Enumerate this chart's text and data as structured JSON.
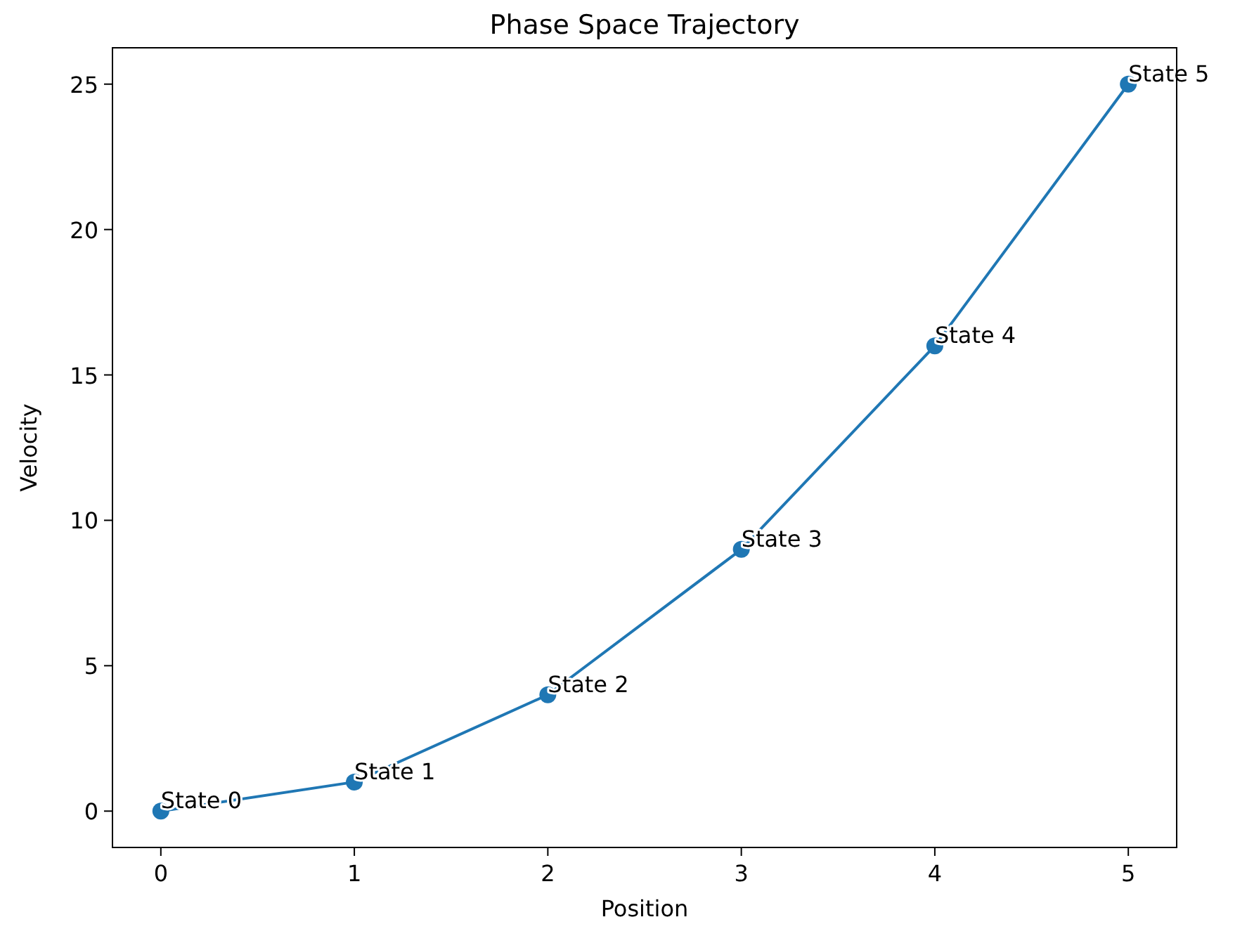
{
  "chart_data": {
    "type": "line",
    "title": "Phase Space Trajectory",
    "xlabel": "Position",
    "ylabel": "Velocity",
    "x": [
      0,
      1,
      2,
      3,
      4,
      5
    ],
    "series": [
      {
        "color": "#1f77b4",
        "values": [
          0,
          1,
          4,
          9,
          16,
          25
        ]
      }
    ],
    "marker": "circle",
    "line_style": "solid",
    "grid": false,
    "xlim": [
      -0.25,
      5.25
    ],
    "xticks": [
      0,
      1,
      2,
      3,
      4,
      5
    ],
    "ylim": [
      -1.25,
      26.25
    ],
    "yticks": [
      0,
      5,
      10,
      15,
      20,
      25
    ],
    "annotations": [
      {
        "text": "State 0",
        "x": 0,
        "y": 0
      },
      {
        "text": "State 1",
        "x": 1,
        "y": 1
      },
      {
        "text": "State 2",
        "x": 2,
        "y": 4
      },
      {
        "text": "State 3",
        "x": 3,
        "y": 9
      },
      {
        "text": "State 4",
        "x": 4,
        "y": 16
      },
      {
        "text": "State 5",
        "x": 5,
        "y": 25
      }
    ]
  }
}
